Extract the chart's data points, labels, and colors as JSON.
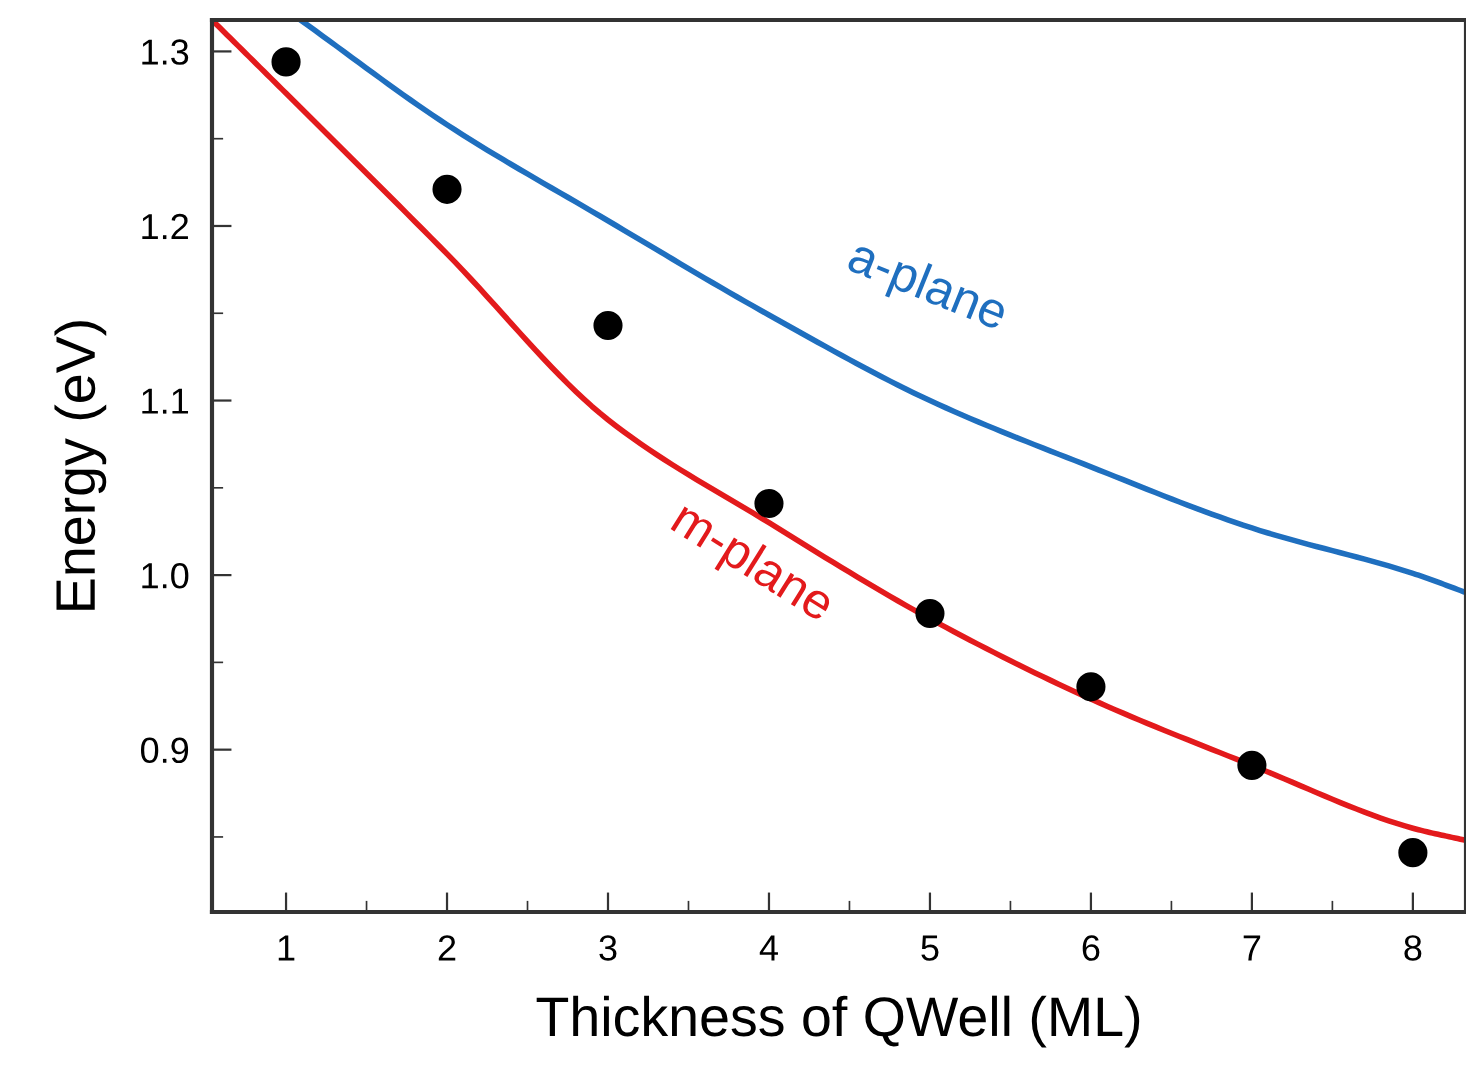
{
  "chart_data": {
    "type": "scatter",
    "xlabel": "Thickness of QWell (ML)",
    "ylabel": "Energy (eV)",
    "xlim": [
      0.54,
      8.33
    ],
    "ylim": [
      0.807,
      1.318
    ],
    "xticks": [
      1,
      2,
      3,
      4,
      5,
      6,
      7,
      8
    ],
    "yticks": [
      0.9,
      {
        "value": 1.0,
        "label": "1.0"
      },
      1.1,
      1.2,
      1.3
    ],
    "grid": false,
    "legend": false,
    "series": [
      {
        "type": "line",
        "color": "#e31a1c",
        "x": [
          0.54,
          1,
          2,
          3,
          4,
          5,
          6,
          7,
          8,
          8.33
        ],
        "values": [
          1.318,
          1.276,
          1.184,
          1.089,
          1.03,
          0.975,
          0.929,
          0.891,
          0.855,
          0.848
        ]
      },
      {
        "type": "line",
        "color": "#1f6fbf",
        "x": [
          1.09,
          2,
          3,
          4,
          5,
          6,
          7,
          8,
          8.33
        ],
        "values": [
          1.318,
          1.258,
          1.203,
          1.149,
          1.1,
          1.062,
          1.027,
          1.001,
          0.99
        ]
      },
      {
        "color": "#000000",
        "marker": "circle",
        "x": [
          1,
          2,
          3,
          4,
          5,
          6,
          7,
          8
        ],
        "values": [
          1.294,
          1.221,
          1.143,
          1.041,
          0.978,
          0.936,
          0.891,
          0.841
        ]
      }
    ],
    "annotations": [
      "a-plane",
      "m-plane"
    ]
  }
}
